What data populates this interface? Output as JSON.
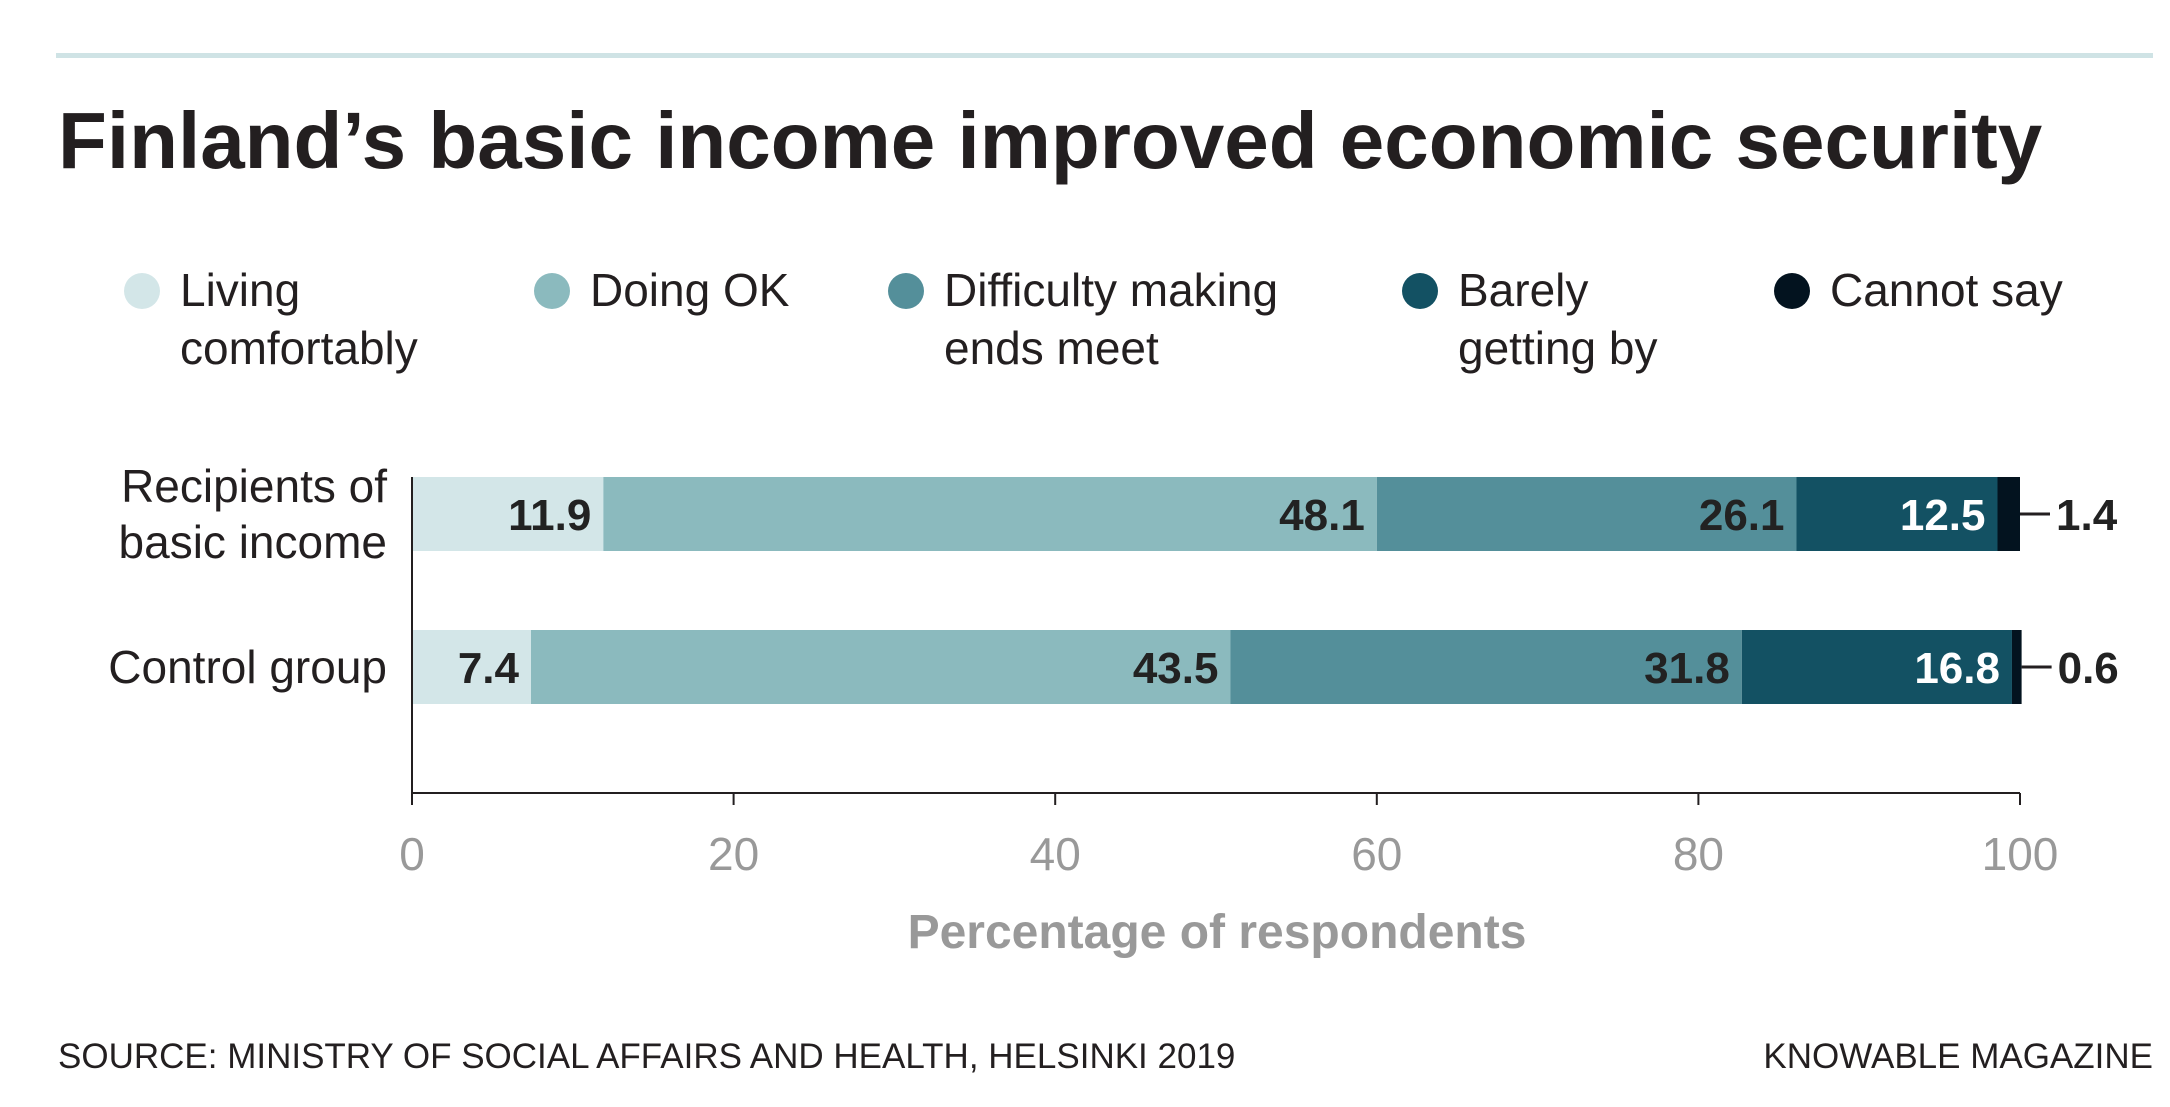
{
  "chart_data": {
    "type": "bar",
    "orientation": "horizontal",
    "stacked": true,
    "title": "Finland’s basic income improved economic security",
    "xlabel": "Percentage of respondents",
    "ylabel": "",
    "xlim": [
      0,
      100
    ],
    "xticks": [
      0,
      20,
      40,
      60,
      80,
      100
    ],
    "grid": false,
    "legend_placement": "top",
    "categories": [
      "Recipients of basic income",
      "Control group"
    ],
    "category_lines": [
      [
        "Recipients of",
        "basic income"
      ],
      [
        "Control group"
      ]
    ],
    "series": [
      {
        "name": "Living comfortably",
        "legend_lines": [
          "Living",
          "comfortably"
        ],
        "color": "#d3e6e8",
        "label_color": "#222222",
        "values": [
          11.9,
          7.4
        ]
      },
      {
        "name": "Doing OK",
        "legend_lines": [
          "Doing OK"
        ],
        "color": "#8bbabe",
        "label_color": "#222222",
        "values": [
          48.1,
          43.5
        ]
      },
      {
        "name": "Difficulty making ends meet",
        "legend_lines": [
          "Difficulty making",
          "ends meet"
        ],
        "color": "#548f9a",
        "label_color": "#222222",
        "values": [
          26.1,
          31.8
        ]
      },
      {
        "name": "Barely getting by",
        "legend_lines": [
          "Barely",
          "getting by"
        ],
        "color": "#135163",
        "label_color": "#ffffff",
        "values": [
          12.5,
          16.8
        ]
      },
      {
        "name": "Cannot say",
        "legend_lines": [
          "Cannot say"
        ],
        "color": "#03131f",
        "label_color": "#222222",
        "label_outside": true,
        "values": [
          1.4,
          0.6
        ]
      }
    ]
  },
  "footer": {
    "source": "SOURCE: MINISTRY OF SOCIAL AFFAIRS AND HEALTH, HELSINKI 2019",
    "credit": "KNOWABLE MAGAZINE"
  },
  "colors": {
    "rule": "#cfe3e5",
    "title": "#231f20",
    "axis_text": "#999999"
  }
}
